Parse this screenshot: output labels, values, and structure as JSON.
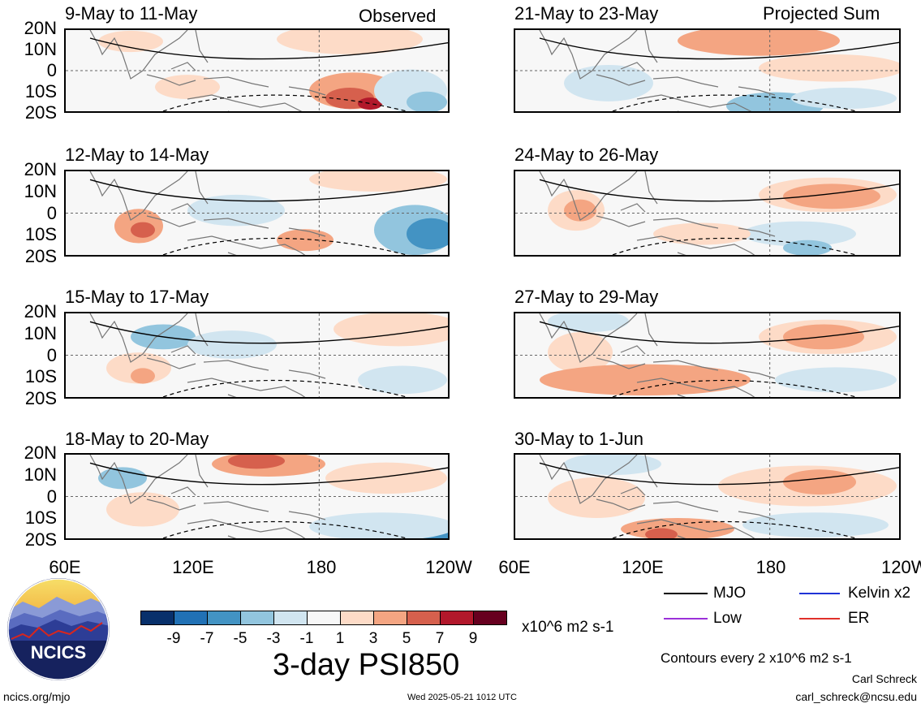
{
  "header": {
    "left_label": "Observed",
    "right_label": "Projected Sum"
  },
  "panels": [
    {
      "title": "9-May to 11-May",
      "column": "left",
      "row": 0
    },
    {
      "title": "12-May to 14-May",
      "column": "left",
      "row": 1
    },
    {
      "title": "15-May to 17-May",
      "column": "left",
      "row": 2
    },
    {
      "title": "18-May to 20-May",
      "column": "left",
      "row": 3
    },
    {
      "title": "21-May to 23-May",
      "column": "right",
      "row": 0
    },
    {
      "title": "24-May to 26-May",
      "column": "right",
      "row": 1
    },
    {
      "title": "27-May to 29-May",
      "column": "right",
      "row": 2
    },
    {
      "title": "30-May to 1-Jun",
      "column": "right",
      "row": 3
    }
  ],
  "axes": {
    "lat_labels": [
      "20N",
      "10N",
      "0",
      "10S",
      "20S"
    ],
    "lon_labels": [
      "60E",
      "120E",
      "180",
      "120W"
    ]
  },
  "colorbar": {
    "colors": [
      "#08306b",
      "#2171b5",
      "#4393c3",
      "#92c5de",
      "#d1e5f0",
      "#f7f7f7",
      "#fddbc7",
      "#f4a582",
      "#d6604d",
      "#b2182b",
      "#67001f"
    ],
    "labels": [
      "-9",
      "-7",
      "-5",
      "-3",
      "-1",
      "1",
      "3",
      "5",
      "7",
      "9"
    ],
    "units": "x10^6 m2 s-1",
    "title": "3-day PSI850"
  },
  "legend": {
    "items": [
      {
        "label": "MJO",
        "color": "#000000"
      },
      {
        "label": "Kelvin x2",
        "color": "#1f33d6"
      },
      {
        "label": "Low",
        "color": "#9b30d9"
      },
      {
        "label": "ER",
        "color": "#e0302a"
      }
    ],
    "contour_note": "Contours every 2 x10^6 m2 s-1"
  },
  "footer": {
    "logo_text": "NCICS",
    "url": "ncics.org/mjo",
    "timestamp": "Wed 2025-05-21 1012 UTC",
    "author": "Carl Schreck",
    "email": "carl_schreck@ncsu.edu"
  }
}
